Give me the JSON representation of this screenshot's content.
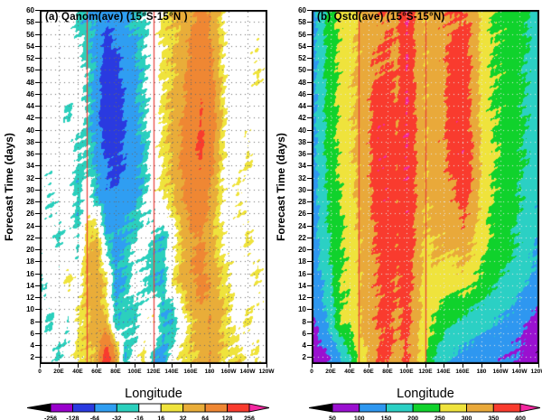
{
  "figure": {
    "background": "#ffffff",
    "text_color": "#000000"
  },
  "chart_data": [
    {
      "type": "heatmap",
      "panel": "a",
      "title": "(a) Qanom(ave) (15°S-15°N )",
      "xlabel": "Longitude",
      "ylabel": "Forecast Time  (days)",
      "x_tick_labels": [
        "0",
        "20E",
        "40E",
        "60E",
        "80E",
        "100E",
        "120E",
        "140E",
        "160E",
        "180",
        "160W",
        "140W",
        "120W"
      ],
      "y_tick_values": [
        2,
        4,
        6,
        8,
        10,
        12,
        14,
        16,
        18,
        20,
        22,
        24,
        26,
        28,
        30,
        32,
        34,
        36,
        38,
        40,
        42,
        44,
        46,
        48,
        50,
        52,
        54,
        56,
        58,
        60
      ],
      "x_range_deg_east": [
        0,
        240
      ],
      "y_range_days": [
        1,
        60
      ],
      "grid_on": true,
      "grid_dot_color": "#6a6a6a",
      "reference_lines_lon_deg_east": [
        50,
        120
      ],
      "reference_line_color": "#e8403a",
      "contour_levels": [
        -256,
        -128,
        -64,
        -32,
        -16,
        16,
        32,
        64,
        128,
        256
      ],
      "band_colors": [
        "#9900cc",
        "#2a3ae0",
        "#2f9ef2",
        "#2bd0bd",
        "#ffffff",
        "#efe33c",
        "#e9ad39",
        "#ef8733",
        "#f93b2e"
      ],
      "under_color": "#000000",
      "over_color": "#f327a0",
      "cbar_tick_labels": [
        "-256",
        "-128",
        "-64",
        "-32",
        "-16",
        "16",
        "32",
        "64",
        "128",
        "256"
      ],
      "legend_position": "bottom-colorbar",
      "grid_lon_deg_east": [
        0,
        10,
        20,
        30,
        40,
        50,
        60,
        70,
        80,
        90,
        100,
        110,
        120,
        130,
        140,
        150,
        160,
        170,
        180,
        190,
        200,
        210,
        220,
        230,
        240
      ],
      "grid_forecast_days": [
        2,
        8,
        15,
        22,
        29,
        36,
        43,
        50,
        58
      ],
      "values": [
        [
          0,
          0,
          -20,
          0,
          20,
          30,
          40,
          180,
          60,
          -30,
          0,
          20,
          -30,
          -40,
          0,
          20,
          30,
          40,
          60,
          30,
          20,
          30,
          0,
          20,
          0
        ],
        [
          0,
          -20,
          0,
          -20,
          20,
          30,
          50,
          30,
          -30,
          -20,
          -30,
          0,
          20,
          -30,
          -40,
          0,
          30,
          50,
          60,
          40,
          20,
          0,
          20,
          0,
          0
        ],
        [
          -20,
          0,
          0,
          20,
          0,
          40,
          50,
          20,
          -40,
          -30,
          0,
          -20,
          -30,
          -30,
          20,
          40,
          60,
          80,
          60,
          30,
          20,
          0,
          0,
          20,
          0
        ],
        [
          0,
          0,
          -20,
          0,
          -20,
          30,
          40,
          -30,
          -40,
          -30,
          -20,
          0,
          -20,
          -30,
          0,
          30,
          60,
          70,
          40,
          20,
          0,
          0,
          20,
          0,
          0
        ],
        [
          0,
          -20,
          0,
          0,
          -30,
          0,
          -30,
          -50,
          -60,
          -50,
          -40,
          -20,
          0,
          20,
          30,
          60,
          90,
          100,
          60,
          20,
          0,
          20,
          0,
          0,
          0
        ],
        [
          0,
          0,
          0,
          0,
          -20,
          -20,
          -40,
          -70,
          -80,
          -60,
          -50,
          -30,
          0,
          20,
          40,
          70,
          110,
          140,
          90,
          30,
          0,
          0,
          20,
          0,
          0
        ],
        [
          0,
          0,
          0,
          -20,
          0,
          -20,
          -50,
          -100,
          -90,
          -60,
          -40,
          -20,
          0,
          20,
          40,
          60,
          90,
          130,
          100,
          40,
          0,
          0,
          0,
          0,
          0
        ],
        [
          0,
          0,
          0,
          0,
          0,
          -20,
          -40,
          -90,
          -80,
          -50,
          -40,
          -20,
          0,
          20,
          30,
          50,
          80,
          110,
          80,
          30,
          0,
          0,
          0,
          20,
          0
        ],
        [
          0,
          0,
          0,
          0,
          -20,
          -30,
          -40,
          -60,
          -50,
          -40,
          -30,
          -20,
          0,
          20,
          30,
          40,
          60,
          80,
          60,
          30,
          0,
          0,
          0,
          0,
          0
        ]
      ]
    },
    {
      "type": "heatmap",
      "panel": "b",
      "title": "(b) Qstd(ave) (15°S-15°N)",
      "xlabel": "Longitude",
      "ylabel": "Forecast Time  (days)",
      "x_tick_labels": [
        "0",
        "20E",
        "40E",
        "60E",
        "80E",
        "100E",
        "120E",
        "140E",
        "160E",
        "180",
        "160W",
        "140W",
        "120W"
      ],
      "y_tick_values": [
        2,
        4,
        6,
        8,
        10,
        12,
        14,
        16,
        18,
        20,
        22,
        24,
        26,
        28,
        30,
        32,
        34,
        36,
        38,
        40,
        42,
        44,
        46,
        48,
        50,
        52,
        54,
        56,
        58,
        60
      ],
      "x_range_deg_east": [
        0,
        240
      ],
      "y_range_days": [
        1,
        60
      ],
      "grid_on": true,
      "grid_dot_color": "#e6e6e6",
      "reference_lines_lon_deg_east": [
        50,
        120
      ],
      "reference_line_color": "#e8403a",
      "contour_levels": [
        50,
        100,
        150,
        200,
        250,
        300,
        350,
        400
      ],
      "band_colors": [
        "#9a10d0",
        "#2e97f0",
        "#2bd0c4",
        "#10d22c",
        "#efe33c",
        "#e9a93a",
        "#f93b2e"
      ],
      "under_color": "#000000",
      "over_color": "#f327a0",
      "cbar_tick_labels": [
        "50",
        "100",
        "150",
        "200",
        "250",
        "300",
        "350",
        "400"
      ],
      "legend_position": "bottom-colorbar",
      "grid_lon_deg_east": [
        0,
        10,
        20,
        30,
        40,
        50,
        60,
        70,
        80,
        90,
        100,
        110,
        120,
        130,
        140,
        150,
        160,
        170,
        180,
        190,
        200,
        210,
        220,
        230,
        240
      ],
      "grid_forecast_days": [
        2,
        8,
        15,
        22,
        29,
        36,
        43,
        50,
        58
      ],
      "values": [
        [
          60,
          80,
          110,
          140,
          190,
          270,
          310,
          350,
          360,
          330,
          360,
          310,
          250,
          200,
          160,
          140,
          130,
          130,
          120,
          120,
          110,
          100,
          90,
          70,
          60
        ],
        [
          90,
          130,
          170,
          250,
          260,
          300,
          330,
          350,
          370,
          340,
          370,
          320,
          270,
          250,
          220,
          200,
          190,
          180,
          170,
          160,
          150,
          140,
          120,
          100,
          80
        ],
        [
          110,
          150,
          190,
          250,
          260,
          300,
          330,
          350,
          370,
          350,
          380,
          330,
          280,
          290,
          280,
          280,
          280,
          260,
          240,
          220,
          200,
          190,
          170,
          150,
          130
        ],
        [
          120,
          170,
          210,
          240,
          270,
          300,
          330,
          360,
          390,
          360,
          390,
          340,
          290,
          310,
          310,
          320,
          330,
          310,
          270,
          240,
          220,
          210,
          190,
          170,
          150
        ],
        [
          120,
          170,
          220,
          250,
          280,
          310,
          340,
          380,
          390,
          360,
          395,
          350,
          300,
          320,
          330,
          340,
          380,
          340,
          280,
          250,
          230,
          220,
          200,
          180,
          160
        ],
        [
          130,
          180,
          230,
          260,
          290,
          310,
          340,
          390,
          385,
          360,
          400,
          350,
          300,
          330,
          340,
          380,
          390,
          350,
          290,
          260,
          240,
          230,
          210,
          190,
          170
        ],
        [
          130,
          180,
          230,
          260,
          290,
          310,
          340,
          390,
          380,
          350,
          400,
          350,
          300,
          330,
          340,
          390,
          380,
          340,
          280,
          250,
          240,
          230,
          210,
          190,
          170
        ],
        [
          130,
          180,
          230,
          260,
          290,
          310,
          340,
          350,
          360,
          340,
          400,
          340,
          300,
          330,
          340,
          380,
          380,
          340,
          280,
          250,
          240,
          230,
          210,
          190,
          170
        ],
        [
          130,
          180,
          230,
          260,
          280,
          300,
          330,
          340,
          350,
          340,
          400,
          340,
          300,
          330,
          340,
          350,
          360,
          340,
          280,
          250,
          240,
          230,
          220,
          200,
          170
        ]
      ]
    }
  ]
}
